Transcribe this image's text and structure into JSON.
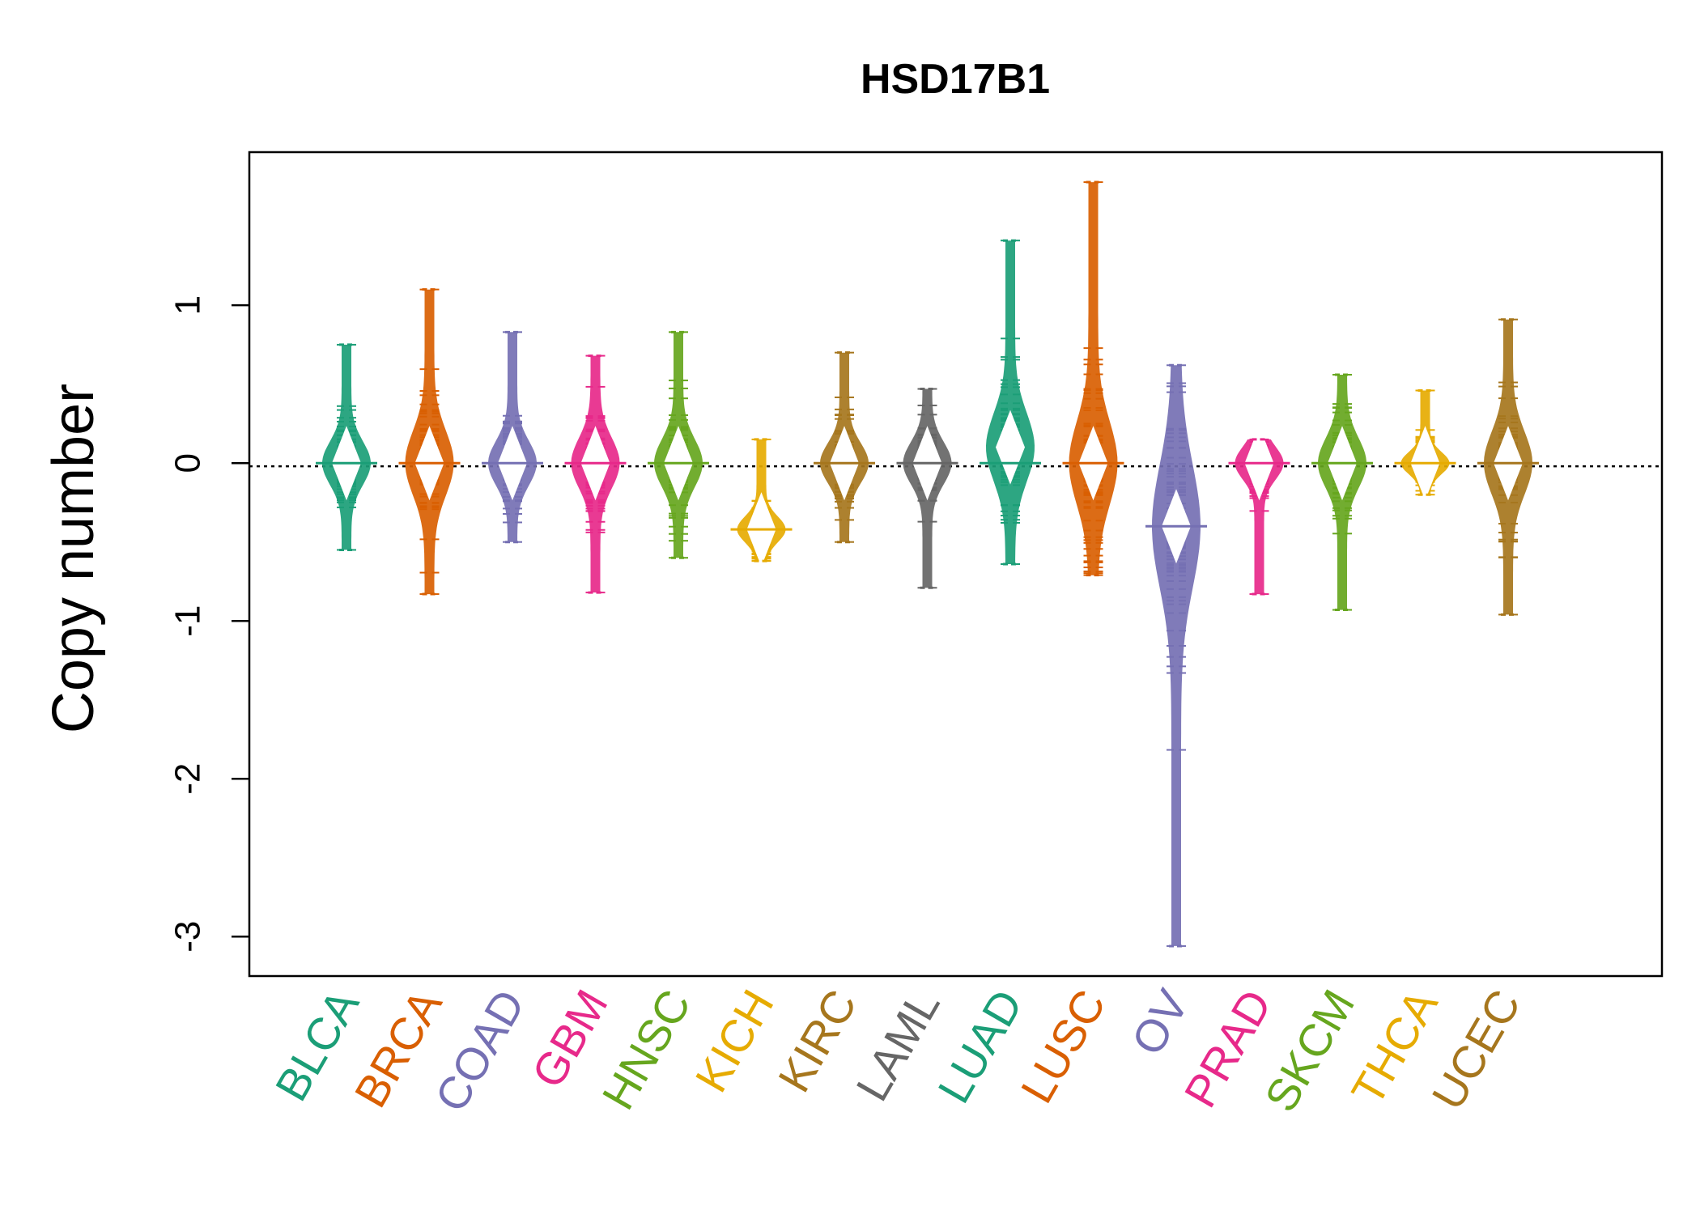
{
  "chart_data": {
    "type": "beanplot",
    "title": "HSD17B1",
    "xlabel": "",
    "ylabel": "Copy number",
    "ylim": [
      -3.25,
      1.97
    ],
    "yticks": [
      1,
      0,
      -1,
      -2,
      -3
    ],
    "ytick_labels": [
      "1",
      "0",
      "-1",
      "-2",
      "-3"
    ],
    "reference_line": -0.02,
    "grid": false,
    "legend": "none",
    "categories": [
      "BLCA",
      "BRCA",
      "COAD",
      "GBM",
      "HNSC",
      "KICH",
      "KIRC",
      "LAML",
      "LUAD",
      "LUSC",
      "OV",
      "PRAD",
      "SKCM",
      "THCA",
      "UCEC"
    ],
    "colors": [
      "#1B9E77",
      "#D95F02",
      "#7570B3",
      "#E7298A",
      "#66A61E",
      "#E6AB02",
      "#A6761D",
      "#666666",
      "#1B9E77",
      "#D95F02",
      "#7570B3",
      "#E7298A",
      "#66A61E",
      "#E6AB02",
      "#A6761D"
    ],
    "series": [
      {
        "category": "BLCA",
        "median": 0.0,
        "min": -0.55,
        "max": 0.75,
        "mode": 0.0
      },
      {
        "category": "BRCA",
        "median": 0.0,
        "min": -0.83,
        "max": 1.1,
        "mode": 0.0
      },
      {
        "category": "COAD",
        "median": 0.0,
        "min": -0.5,
        "max": 0.83,
        "mode": 0.0
      },
      {
        "category": "GBM",
        "median": 0.0,
        "min": -0.82,
        "max": 0.68,
        "mode": 0.0
      },
      {
        "category": "HNSC",
        "median": 0.0,
        "min": -0.6,
        "max": 0.83,
        "mode": 0.0
      },
      {
        "category": "KICH",
        "median": -0.42,
        "min": -0.62,
        "max": 0.15,
        "mode": -0.42
      },
      {
        "category": "KIRC",
        "median": 0.0,
        "min": -0.5,
        "max": 0.7,
        "mode": 0.0
      },
      {
        "category": "LAML",
        "median": 0.0,
        "min": -0.79,
        "max": 0.47,
        "mode": 0.0
      },
      {
        "category": "LUAD",
        "median": 0.0,
        "min": -0.64,
        "max": 1.41,
        "mode": 0.1
      },
      {
        "category": "LUSC",
        "median": 0.0,
        "min": -0.71,
        "max": 1.78,
        "mode": 0.0
      },
      {
        "category": "OV",
        "median": -0.4,
        "min": -3.06,
        "max": 0.62,
        "mode": -0.4
      },
      {
        "category": "PRAD",
        "median": 0.0,
        "min": -0.83,
        "max": 0.15,
        "mode": 0.0
      },
      {
        "category": "SKCM",
        "median": 0.0,
        "min": -0.93,
        "max": 0.56,
        "mode": 0.0
      },
      {
        "category": "THCA",
        "median": 0.0,
        "min": -0.2,
        "max": 0.46,
        "mode": 0.0
      },
      {
        "category": "UCEC",
        "median": 0.0,
        "min": -0.96,
        "max": 0.91,
        "mode": 0.0
      }
    ]
  }
}
